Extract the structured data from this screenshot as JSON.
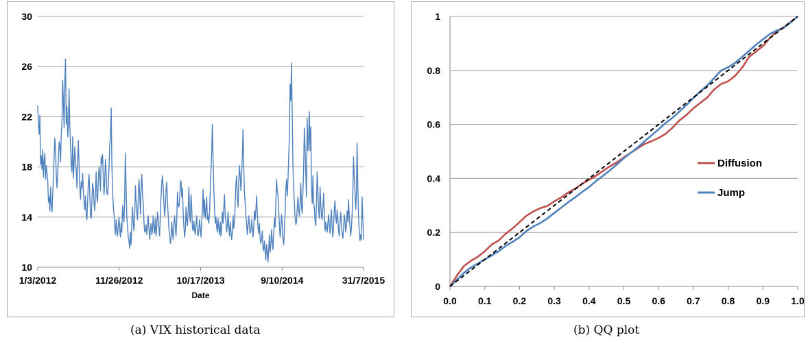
{
  "captions": {
    "a": "(a)  VIX historical data",
    "b": "(b)  QQ plot"
  },
  "chart_data": [
    {
      "type": "line",
      "title": "",
      "xlabel": "Date",
      "ylabel": "",
      "ylim": [
        10,
        30
      ],
      "yticks": [
        "10",
        "14",
        "18",
        "22",
        "26",
        "30"
      ],
      "xticks": [
        "1/3/2012",
        "11/26/2012",
        "10/17/2013",
        "9/10/2014",
        "31/7/2015"
      ],
      "grid": "horizontal",
      "series": [
        {
          "color": "#4f81bd",
          "values": [
            22.9,
            21.4,
            20.6,
            22.1,
            18.2,
            18.9,
            17.8,
            19.4,
            17.2,
            18.5,
            19.1,
            17.0,
            18.1,
            17.5,
            16.9,
            15.2,
            15.6,
            14.5,
            16.4,
            15.1,
            14.4,
            15.8,
            17.2,
            18.9,
            20.3,
            19.4,
            17.4,
            16.3,
            17.3,
            18.7,
            20.0,
            19.8,
            18.4,
            20.6,
            21.5,
            24.9,
            23.2,
            21.1,
            24.7,
            26.6,
            21.4,
            22.8,
            20.4,
            21.2,
            24.2,
            21.2,
            19.8,
            18.2,
            17.6,
            20.4,
            17.1,
            18.3,
            19.6,
            18.5,
            17.8,
            16.3,
            18.4,
            20.1,
            18.2,
            16.5,
            15.4,
            16.8,
            16.3,
            17.5,
            16.1,
            15.2,
            14.6,
            15.7,
            14.1,
            13.8,
            15.3,
            16.8,
            17.4,
            15.8,
            14.2,
            13.9,
            15.4,
            16.7,
            16.2,
            15.1,
            14.5,
            16.0,
            17.6,
            15.5,
            15.2,
            16.9,
            18.0,
            17.4,
            16.1,
            18.8,
            18.3,
            19.0,
            17.1,
            15.8,
            16.9,
            18.6,
            17.4,
            15.9,
            15.8,
            16.6,
            17.9,
            19.8,
            20.4,
            22.7,
            18.3,
            16.1,
            14.9,
            14.2,
            13.3,
            12.6,
            13.8,
            12.9,
            12.5,
            13.3,
            14.0,
            13.1,
            12.4,
            13.5,
            12.8,
            14.9,
            14.2,
            13.6,
            15.8,
            19.1,
            16.3,
            14.0,
            13.2,
            12.4,
            12.1,
            11.5,
            12.8,
            11.8,
            13.6,
            14.8,
            13.5,
            12.9,
            14.2,
            16.5,
            15.3,
            14.4,
            13.8,
            15.5,
            17.0,
            15.9,
            14.2,
            16.3,
            17.4,
            15.8,
            15.1,
            13.6,
            12.8,
            12.9,
            13.4,
            12.6,
            13.6,
            14.1,
            13.1,
            12.2,
            13.0,
            13.5,
            12.6,
            12.9,
            14.1,
            13.2,
            12.7,
            13.9,
            12.5,
            13.3,
            14.4,
            13.8,
            13.1,
            12.5,
            14.2,
            15.6,
            16.8,
            17.3,
            16.4,
            15.1,
            14.1,
            14.8,
            16.2,
            16.8,
            15.1,
            14.2,
            13.1,
            12.7,
            11.9,
            12.3,
            13.6,
            12.8,
            12.2,
            13.5,
            14.1,
            13.1,
            12.5,
            13.8,
            16.0,
            14.9,
            14.8,
            15.3,
            16.7,
            16.9,
            15.6,
            16.3,
            14.4,
            13.2,
            12.4,
            13.0,
            14.8,
            13.8,
            13.3,
            14.5,
            16.4,
            14.2,
            13.6,
            15.8,
            14.8,
            13.1,
            12.9,
            13.7,
            13.0,
            12.6,
            13.4,
            14.1,
            12.8,
            12.5,
            12.9,
            13.8,
            13.1,
            12.4,
            13.6,
            14.6,
            16.2,
            14.1,
            15.4,
            13.9,
            14.6,
            15.6,
            13.8,
            14.1,
            13.5,
            14.4,
            16.1,
            17.8,
            19.1,
            21.4,
            18.6,
            16.2,
            14.8,
            13.5,
            14.0,
            13.2,
            12.8,
            13.9,
            13.1,
            12.6,
            13.6,
            12.5,
            13.2,
            14.4,
            13.5,
            14.7,
            15.8,
            14.1,
            13.6,
            12.8,
            13.4,
            14.4,
            13.2,
            12.5,
            13.6,
            12.9,
            12.2,
            12.8,
            14.1,
            13.1,
            13.7,
            15.1,
            16.6,
            17.3,
            15.5,
            14.8,
            16.8,
            18.1,
            17.2,
            16.1,
            17.4,
            19.0,
            21.0,
            17.9,
            15.9,
            15.1,
            14.1,
            13.5,
            12.6,
            13.4,
            14.1,
            13.2,
            12.7,
            12.9,
            13.8,
            13.1,
            12.4,
            13.2,
            14.5,
            13.8,
            14.6,
            15.7,
            14.4,
            13.1,
            12.7,
            13.5,
            12.2,
            11.9,
            12.3,
            12.9,
            11.6,
            11.3,
            12.1,
            11.2,
            10.6,
            11.8,
            11.3,
            10.4,
            11.4,
            12.6,
            11.2,
            11.8,
            13.0,
            12.1,
            11.4,
            12.6,
            13.9,
            13.2,
            15.2,
            17.0,
            16.1,
            15.7,
            14.6,
            13.3,
            12.4,
            13.1,
            14.2,
            13.4,
            12.2,
            11.8,
            12.9,
            14.4,
            16.2,
            17.0,
            15.7,
            16.9,
            18.8,
            20.4,
            24.6,
            23.3,
            26.3,
            21.9,
            18.2,
            16.4,
            15.1,
            14.0,
            13.4,
            13.6,
            14.7,
            15.6,
            14.6,
            14.1,
            15.2,
            16.7,
            14.8,
            14.3,
            16.1,
            17.9,
            21.1,
            19.5,
            17.5,
            15.6,
            21.9,
            19.3,
            20.4,
            22.4,
            19.3,
            21.2,
            16.4,
            15.1,
            17.3,
            15.2,
            14.7,
            13.7,
            13.3,
            15.2,
            17.6,
            16.0,
            14.5,
            13.9,
            16.4,
            15.1,
            14.1,
            13.8,
            14.8,
            15.9,
            14.3,
            12.9,
            13.6,
            13.1,
            12.8,
            13.5,
            14.2,
            13.4,
            12.7,
            13.8,
            14.6,
            13.1,
            12.4,
            13.2,
            14.7,
            15.3,
            14.0,
            13.5,
            14.6,
            13.8,
            12.9,
            12.5,
            13.6,
            14.4,
            13.3,
            12.7,
            12.3,
            13.1,
            14.2,
            13.6,
            12.8,
            13.4,
            14.5,
            13.6,
            15.4,
            14.1,
            13.2,
            12.5,
            13.1,
            14.3,
            15.9,
            18.8,
            17.2,
            16.1,
            14.6,
            15.8,
            19.9,
            16.4,
            14.1,
            12.8,
            12.1,
            12.6,
            12.2,
            15.6,
            13.8,
            12.2
          ]
        }
      ]
    },
    {
      "type": "line",
      "title": "",
      "xlabel": "",
      "ylabel": "",
      "xlim": [
        0,
        1
      ],
      "ylim": [
        0,
        1
      ],
      "xticks": [
        "0.0",
        "0.1",
        "0.2",
        "0.3",
        "0.4",
        "0.5",
        "0.6",
        "0.7",
        "0.8",
        "0.9",
        "1.0"
      ],
      "yticks": [
        "0",
        "0.2",
        "0.4",
        "0.6",
        "0.8",
        "1"
      ],
      "grid": "horizontal",
      "legend": "right",
      "series": [
        {
          "name": "Diffusion",
          "color": "#c0504d",
          "x": [
            0,
            0.02,
            0.04,
            0.06,
            0.08,
            0.1,
            0.12,
            0.14,
            0.16,
            0.18,
            0.2,
            0.22,
            0.24,
            0.26,
            0.28,
            0.3,
            0.32,
            0.34,
            0.36,
            0.38,
            0.4,
            0.42,
            0.44,
            0.46,
            0.48,
            0.5,
            0.52,
            0.54,
            0.56,
            0.58,
            0.6,
            0.62,
            0.64,
            0.66,
            0.68,
            0.7,
            0.72,
            0.74,
            0.76,
            0.78,
            0.8,
            0.82,
            0.84,
            0.86,
            0.88,
            0.9,
            0.92,
            0.94,
            0.96,
            0.98,
            1.0
          ],
          "y": [
            0,
            0.04,
            0.075,
            0.095,
            0.11,
            0.13,
            0.155,
            0.17,
            0.195,
            0.215,
            0.238,
            0.262,
            0.278,
            0.29,
            0.298,
            0.315,
            0.33,
            0.348,
            0.362,
            0.38,
            0.395,
            0.41,
            0.428,
            0.445,
            0.46,
            0.478,
            0.495,
            0.512,
            0.528,
            0.538,
            0.55,
            0.565,
            0.588,
            0.615,
            0.635,
            0.66,
            0.68,
            0.7,
            0.73,
            0.75,
            0.76,
            0.78,
            0.81,
            0.85,
            0.87,
            0.89,
            0.92,
            0.945,
            0.96,
            0.98,
            1.0
          ]
        },
        {
          "name": "Jump",
          "color": "#4f81bd",
          "x": [
            0,
            0.02,
            0.04,
            0.06,
            0.08,
            0.1,
            0.12,
            0.14,
            0.16,
            0.18,
            0.2,
            0.22,
            0.24,
            0.26,
            0.28,
            0.3,
            0.32,
            0.34,
            0.36,
            0.38,
            0.4,
            0.42,
            0.44,
            0.46,
            0.48,
            0.5,
            0.52,
            0.54,
            0.56,
            0.58,
            0.6,
            0.62,
            0.64,
            0.66,
            0.68,
            0.7,
            0.72,
            0.74,
            0.76,
            0.78,
            0.8,
            0.82,
            0.84,
            0.86,
            0.88,
            0.9,
            0.92,
            0.94,
            0.96,
            0.98,
            1.0
          ],
          "y": [
            0,
            0.025,
            0.05,
            0.07,
            0.085,
            0.1,
            0.115,
            0.13,
            0.15,
            0.165,
            0.182,
            0.205,
            0.222,
            0.235,
            0.252,
            0.272,
            0.292,
            0.312,
            0.33,
            0.35,
            0.368,
            0.39,
            0.41,
            0.43,
            0.452,
            0.475,
            0.495,
            0.515,
            0.538,
            0.56,
            0.582,
            0.605,
            0.625,
            0.648,
            0.672,
            0.698,
            0.722,
            0.745,
            0.772,
            0.8,
            0.812,
            0.828,
            0.85,
            0.872,
            0.895,
            0.915,
            0.935,
            0.948,
            0.958,
            0.978,
            1.0
          ]
        },
        {
          "color": "#000000",
          "x": [
            0,
            1
          ],
          "y": [
            0,
            1
          ]
        }
      ]
    }
  ]
}
